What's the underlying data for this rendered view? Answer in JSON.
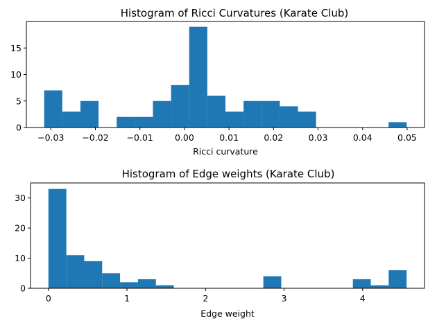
{
  "chart_data": [
    {
      "type": "bar",
      "title": "Histogram of Ricci Curvatures (Karate Club)",
      "xlabel": "Ricci curvature",
      "ylabel": "",
      "bin_edges": [
        -0.0315,
        -0.02743,
        -0.02336,
        -0.01929,
        -0.01522,
        -0.01115,
        -0.00708,
        -0.00301,
        0.00106,
        0.00513,
        0.0092,
        0.01327,
        0.01734,
        0.02141,
        0.02548,
        0.02955,
        0.03362,
        0.03769,
        0.04176,
        0.04583,
        0.0499
      ],
      "values": [
        7,
        3,
        5,
        0,
        2,
        2,
        5,
        8,
        19,
        6,
        3,
        5,
        5,
        4,
        3,
        0,
        0,
        0,
        0,
        1
      ],
      "xlim": [
        -0.0355,
        0.0539
      ],
      "ylim": [
        0,
        20
      ],
      "xticks": [
        -0.03,
        -0.02,
        -0.01,
        0.0,
        0.01,
        0.02,
        0.03,
        0.04,
        0.05
      ],
      "xtick_labels": [
        "−0.03",
        "−0.02",
        "−0.01",
        "0.00",
        "0.01",
        "0.02",
        "0.03",
        "0.04",
        "0.05"
      ],
      "yticks": [
        0,
        5,
        10,
        15
      ],
      "ytick_labels": [
        "0",
        "5",
        "10",
        "15"
      ],
      "color": "#1f77b4"
    },
    {
      "type": "bar",
      "title": "Histogram of Edge weights (Karate Club)",
      "xlabel": "Edge weight",
      "ylabel": "",
      "bin_edges": [
        0.0,
        0.228,
        0.456,
        0.684,
        0.912,
        1.14,
        1.368,
        1.596,
        1.824,
        2.052,
        2.28,
        2.508,
        2.736,
        2.964,
        3.192,
        3.42,
        3.648,
        3.876,
        4.104,
        4.332,
        4.56
      ],
      "values": [
        33,
        11,
        9,
        5,
        2,
        3,
        1,
        0,
        0,
        0,
        0,
        0,
        4,
        0,
        0,
        0,
        0,
        3,
        1,
        6
      ],
      "xlim": [
        -0.228,
        4.788
      ],
      "ylim": [
        0,
        35
      ],
      "xticks": [
        0,
        1,
        2,
        3,
        4
      ],
      "xtick_labels": [
        "0",
        "1",
        "2",
        "3",
        "4"
      ],
      "yticks": [
        0,
        10,
        20,
        30
      ],
      "ytick_labels": [
        "0",
        "10",
        "20",
        "30"
      ],
      "color": "#1f77b4"
    }
  ]
}
